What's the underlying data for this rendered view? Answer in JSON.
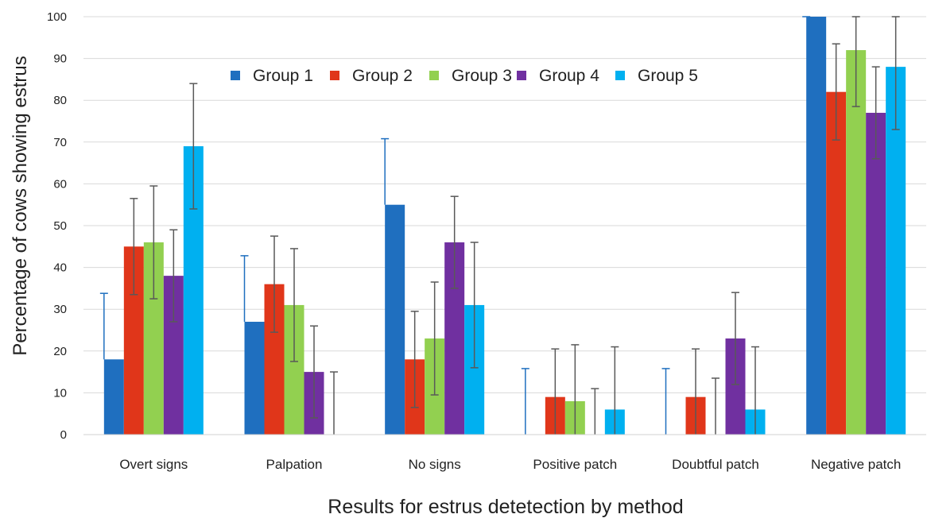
{
  "chart_data": {
    "type": "bar",
    "title": "",
    "xlabel": "Results for estrus detetection by method",
    "ylabel": "Percentage of cows showing estrus",
    "ylim": [
      0,
      100
    ],
    "yticks": [
      0,
      10,
      20,
      30,
      40,
      50,
      60,
      70,
      80,
      90,
      100
    ],
    "grid": true,
    "legend_position": "top-center",
    "categories": [
      "Overt signs",
      "Palpation",
      "No signs",
      "Positive patch",
      "Doubtful patch",
      "Negative patch"
    ],
    "series": [
      {
        "name": "Group 1",
        "color": "#1f6fbf",
        "values": [
          18,
          27,
          55,
          0,
          0,
          100
        ],
        "error_upper": [
          33.8,
          42.8,
          70.8,
          15.8,
          15.8,
          100
        ]
      },
      {
        "name": "Group 2",
        "color": "#e0361a",
        "values": [
          45,
          36,
          18,
          9,
          9,
          82
        ],
        "error_lower": [
          33.5,
          24.5,
          6.5,
          0,
          0,
          70.5
        ],
        "error_upper": [
          56.5,
          47.5,
          29.5,
          20.5,
          20.5,
          93.5
        ]
      },
      {
        "name": "Group 3",
        "color": "#92d050",
        "values": [
          46,
          31,
          23,
          8,
          0,
          92
        ],
        "error_lower": [
          32.5,
          17.5,
          9.5,
          0,
          0,
          78.5
        ],
        "error_upper": [
          59.5,
          44.5,
          36.5,
          21.5,
          13.5,
          100
        ]
      },
      {
        "name": "Group 4",
        "color": "#7030a0",
        "values": [
          38,
          15,
          46,
          0,
          23,
          77
        ],
        "error_lower": [
          27,
          4,
          35,
          0,
          12,
          66
        ],
        "error_upper": [
          49,
          26,
          57,
          11,
          34,
          88
        ]
      },
      {
        "name": "Group 5",
        "color": "#00b0f0",
        "values": [
          69,
          0,
          31,
          6,
          6,
          88
        ],
        "error_lower": [
          54,
          0,
          16,
          0,
          0,
          73
        ],
        "error_upper": [
          84,
          15,
          46,
          21,
          21,
          100
        ]
      }
    ],
    "error_bar_color": "#595959"
  }
}
